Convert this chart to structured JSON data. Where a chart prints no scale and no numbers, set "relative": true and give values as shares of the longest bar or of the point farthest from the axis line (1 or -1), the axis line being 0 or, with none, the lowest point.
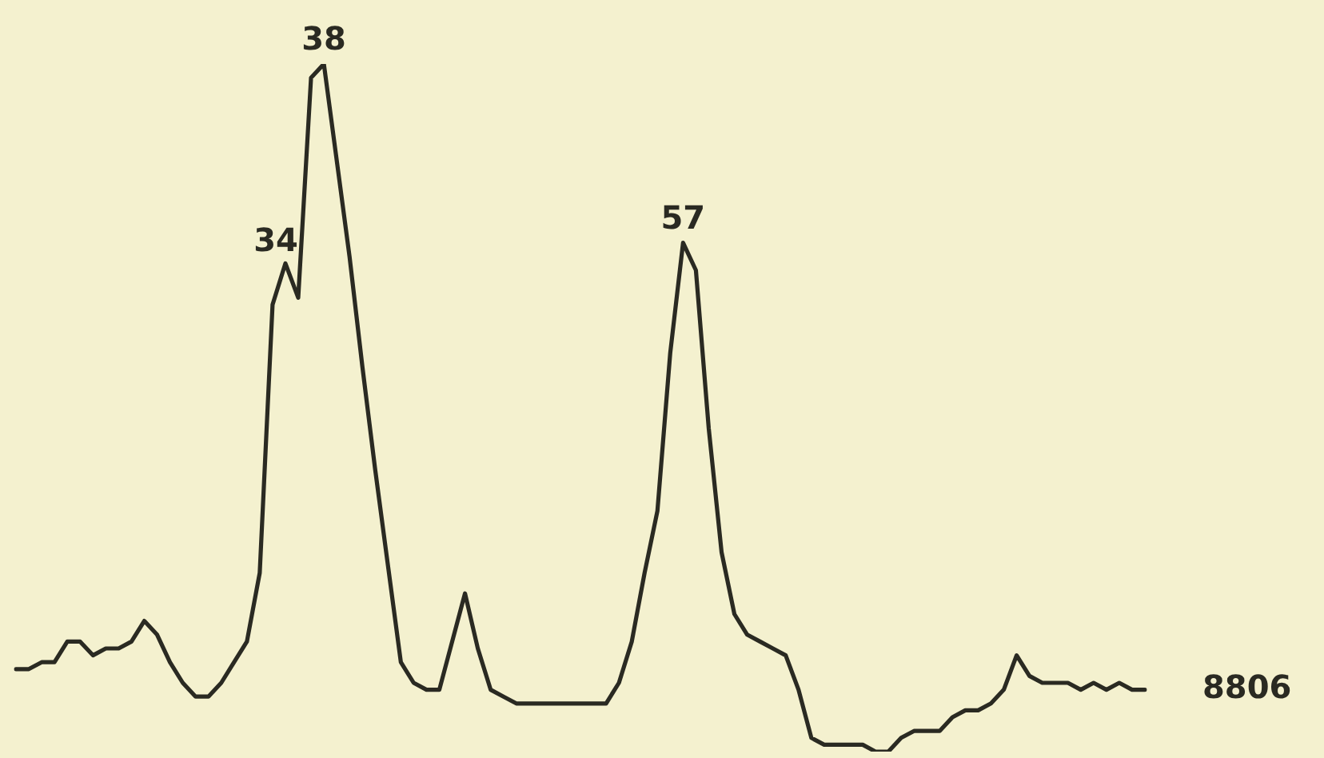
{
  "chart_data": {
    "type": "line",
    "relative": true,
    "color": "#2a2a22",
    "marker": "none",
    "line_style": "solid",
    "legend": false,
    "categories": [
      null,
      null,
      null,
      null,
      null,
      null,
      null,
      null,
      null,
      null,
      null,
      null,
      null,
      null,
      null,
      null,
      null,
      null,
      null,
      null,
      null,
      null,
      null,
      null,
      null,
      null,
      null,
      null,
      null,
      null,
      null,
      null,
      null,
      null,
      null,
      null,
      null,
      null,
      null,
      null,
      null,
      null,
      null,
      null,
      null,
      null,
      null,
      null,
      null,
      null,
      null,
      null,
      null,
      null,
      null,
      null,
      null,
      null,
      null,
      null,
      null,
      null,
      null,
      null,
      null,
      null,
      null,
      null,
      null,
      null,
      null,
      null,
      null,
      null,
      null,
      null,
      null,
      null,
      null,
      null,
      null,
      null,
      null,
      null,
      null,
      null,
      null,
      null,
      null
    ],
    "values": [
      0.12,
      0.12,
      0.13,
      0.13,
      0.16,
      0.16,
      0.14,
      0.15,
      0.15,
      0.16,
      0.19,
      0.17,
      0.13,
      0.1,
      0.08,
      0.08,
      0.1,
      0.13,
      0.16,
      0.26,
      0.65,
      0.71,
      0.66,
      0.98,
      1.0,
      0.86,
      0.72,
      0.56,
      0.41,
      0.27,
      0.13,
      0.1,
      0.09,
      0.09,
      0.16,
      0.23,
      0.15,
      0.09,
      0.08,
      0.07,
      0.07,
      0.07,
      0.07,
      0.07,
      0.07,
      0.07,
      0.07,
      0.1,
      0.16,
      0.26,
      0.35,
      0.58,
      0.74,
      0.7,
      0.47,
      0.29,
      0.2,
      0.17,
      0.16,
      0.15,
      0.14,
      0.09,
      0.02,
      0.01,
      0.01,
      0.01,
      0.01,
      0.0,
      0.0,
      0.02,
      0.03,
      0.03,
      0.03,
      0.05,
      0.06,
      0.06,
      0.07,
      0.09,
      0.14,
      0.11,
      0.1,
      0.1,
      0.1,
      0.09,
      0.1,
      0.09,
      0.1,
      0.09,
      0.09
    ],
    "annotations": [
      {
        "text": "34",
        "y": 0.71
      },
      {
        "text": "38",
        "y": 1.0
      },
      {
        "text": "57",
        "y": 0.74
      },
      "8806"
    ]
  }
}
